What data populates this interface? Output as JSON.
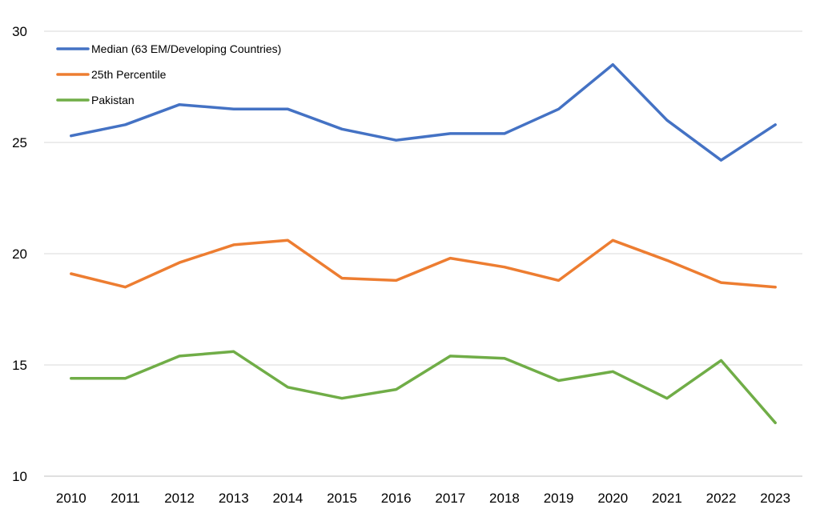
{
  "chart_data": {
    "type": "line",
    "title": "",
    "xlabel": "",
    "ylabel": "",
    "x": [
      "2010",
      "2011",
      "2012",
      "2013",
      "2014",
      "2015",
      "2016",
      "2017",
      "2018",
      "2019",
      "2020",
      "2021",
      "2022",
      "2023"
    ],
    "ylim": [
      10,
      30
    ],
    "yticks": [
      "10",
      "15",
      "20",
      "25",
      "30"
    ],
    "grid": true,
    "legend": "top-left",
    "series": [
      {
        "name": "Median (63 EM/Developing Countries)",
        "color": "#4472C4",
        "values": [
          25.3,
          25.8,
          26.7,
          26.5,
          26.5,
          25.6,
          25.1,
          25.4,
          25.4,
          26.5,
          28.5,
          26.0,
          24.2,
          25.8
        ]
      },
      {
        "name": "25th Percentile",
        "color": "#ED7D31",
        "values": [
          19.1,
          18.5,
          19.6,
          20.4,
          20.6,
          18.9,
          18.8,
          19.8,
          19.4,
          18.8,
          20.6,
          19.7,
          18.7,
          18.5
        ]
      },
      {
        "name": "Pakistan",
        "color": "#70AD47",
        "values": [
          14.4,
          14.4,
          15.4,
          15.6,
          14.0,
          13.5,
          13.9,
          15.4,
          15.3,
          14.3,
          14.7,
          13.5,
          15.2,
          12.4
        ]
      }
    ]
  }
}
